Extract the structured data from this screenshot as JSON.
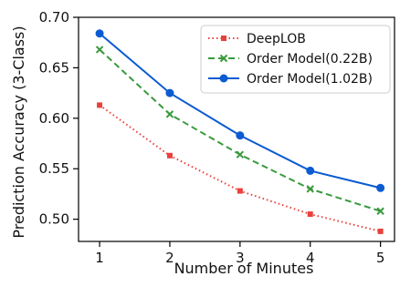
{
  "chart_data": {
    "type": "line",
    "title": "",
    "xlabel": "Number of Minutes",
    "ylabel": "Prediction Accuracy (3-Class)",
    "x": [
      1,
      2,
      3,
      4,
      5
    ],
    "x_ticks": [
      "1",
      "2",
      "3",
      "4",
      "5"
    ],
    "xlim": [
      0.7,
      5.2
    ],
    "ylim": [
      0.478,
      0.7
    ],
    "y_ticks": [
      "0.50",
      "0.55",
      "0.60",
      "0.65",
      "0.70"
    ],
    "grid": false,
    "legend_position": "top-right",
    "series": [
      {
        "name": "DeepLOB",
        "values": [
          0.613,
          0.563,
          0.528,
          0.505,
          0.488
        ],
        "color": "#e8413c",
        "dash": "dotted",
        "marker": "square"
      },
      {
        "name": "Order Model(0.22B)",
        "values": [
          0.668,
          0.604,
          0.564,
          0.53,
          0.508
        ],
        "color": "#3a9a3d",
        "dash": "dashed",
        "marker": "x"
      },
      {
        "name": "Order Model(1.02B)",
        "values": [
          0.684,
          0.625,
          0.583,
          0.548,
          0.531
        ],
        "color": "#0b5bd1",
        "dash": "solid",
        "marker": "circle"
      }
    ]
  }
}
